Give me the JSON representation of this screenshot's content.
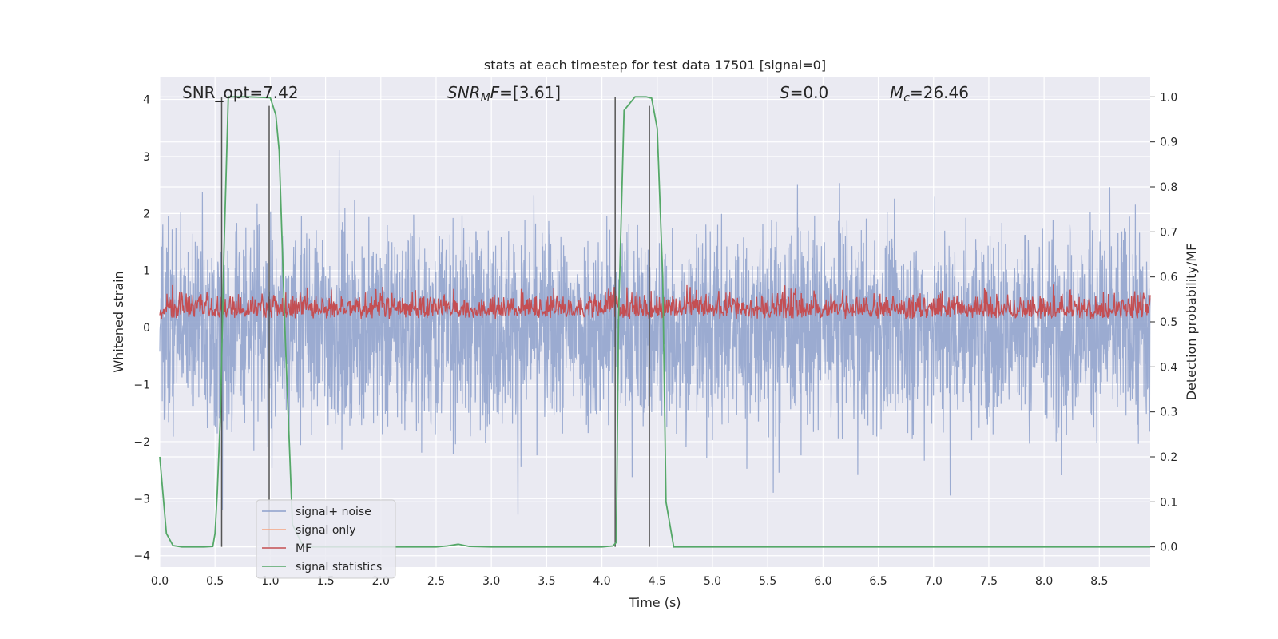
{
  "chart_data": {
    "type": "line",
    "title": "stats at each timestep for test data 17501 [signal=0]",
    "xlabel": "Time (s)",
    "ylabel": "Whitened strain",
    "y2label": "Detection probability/MF",
    "xlim": [
      0.0,
      8.96
    ],
    "ylim": [
      -4.2,
      4.4
    ],
    "y2lim": [
      -0.045,
      1.045
    ],
    "x_ticks": [
      "0.0",
      "0.5",
      "1.0",
      "1.5",
      "2.0",
      "2.5",
      "3.0",
      "3.5",
      "4.0",
      "4.5",
      "5.0",
      "5.5",
      "6.0",
      "6.5",
      "7.0",
      "7.5",
      "8.0",
      "8.5"
    ],
    "y_ticks": [
      "4",
      "3",
      "2",
      "1",
      "0",
      "−1",
      "−2",
      "−3",
      "−4"
    ],
    "y2_ticks": [
      "1.0",
      "0.9",
      "0.8",
      "0.7",
      "0.6",
      "0.5",
      "0.4",
      "0.3",
      "0.2",
      "0.1",
      "0.0"
    ],
    "annotations": {
      "snr_opt": "SNR_opt=7.42",
      "snr_mf_sym": "SNR",
      "snr_mf_sub": "M",
      "snr_mf_tail": "F",
      "snr_mf_value": "=[3.61]",
      "s_sym": "S",
      "s_value": "=0.0",
      "mc_sym": "M",
      "mc_sub": "c",
      "mc_value": "=26.46"
    },
    "legend": {
      "position": "lower-left",
      "entries": [
        {
          "label": "signal+ noise",
          "color": "#8da0cb"
        },
        {
          "label": "signal only",
          "color": "#f4a582"
        },
        {
          "label": "MF",
          "color": "#c44e52"
        },
        {
          "label": "signal statistics",
          "color": "#55a868"
        }
      ]
    },
    "series": [
      {
        "name": "signal+ noise",
        "axis": "left",
        "color": "#8da0cb",
        "description": "whitened strain noise, amplitude roughly within -3.5 to 3.9"
      },
      {
        "name": "MF",
        "axis": "right",
        "color": "#c44e52",
        "description": "matched filter output, roughly 0.5 to 0.6 on right axis"
      },
      {
        "name": "signal statistics",
        "axis": "right",
        "color": "#55a868",
        "x": [
          0.0,
          0.06,
          0.12,
          0.2,
          0.3,
          0.4,
          0.48,
          0.5,
          0.52,
          0.55,
          0.58,
          0.62,
          0.7,
          0.8,
          0.9,
          1.0,
          1.05,
          1.08,
          1.13,
          1.2,
          1.3,
          1.5,
          2.0,
          2.5,
          2.6,
          2.7,
          2.8,
          3.0,
          3.5,
          4.0,
          4.1,
          4.13,
          4.15,
          4.2,
          4.3,
          4.4,
          4.45,
          4.5,
          4.55,
          4.58,
          4.65,
          5.0,
          6.0,
          7.0,
          8.0,
          8.96
        ],
        "values": [
          0.2,
          0.03,
          0.003,
          0.0,
          0.0,
          0.0,
          0.001,
          0.03,
          0.12,
          0.3,
          0.65,
          1.0,
          1.0,
          1.0,
          0.999,
          0.998,
          0.96,
          0.88,
          0.5,
          0.05,
          0.0,
          0.0,
          0.0,
          0.0,
          0.002,
          0.006,
          0.001,
          0.0,
          0.0,
          0.0,
          0.002,
          0.01,
          0.5,
          0.97,
          1.0,
          1.0,
          0.997,
          0.93,
          0.6,
          0.1,
          0.0,
          0.0,
          0.0,
          0.0,
          0.0,
          0.0
        ]
      }
    ],
    "vertical_markers_x": [
      0.56,
      0.99,
      4.12,
      4.43
    ]
  }
}
